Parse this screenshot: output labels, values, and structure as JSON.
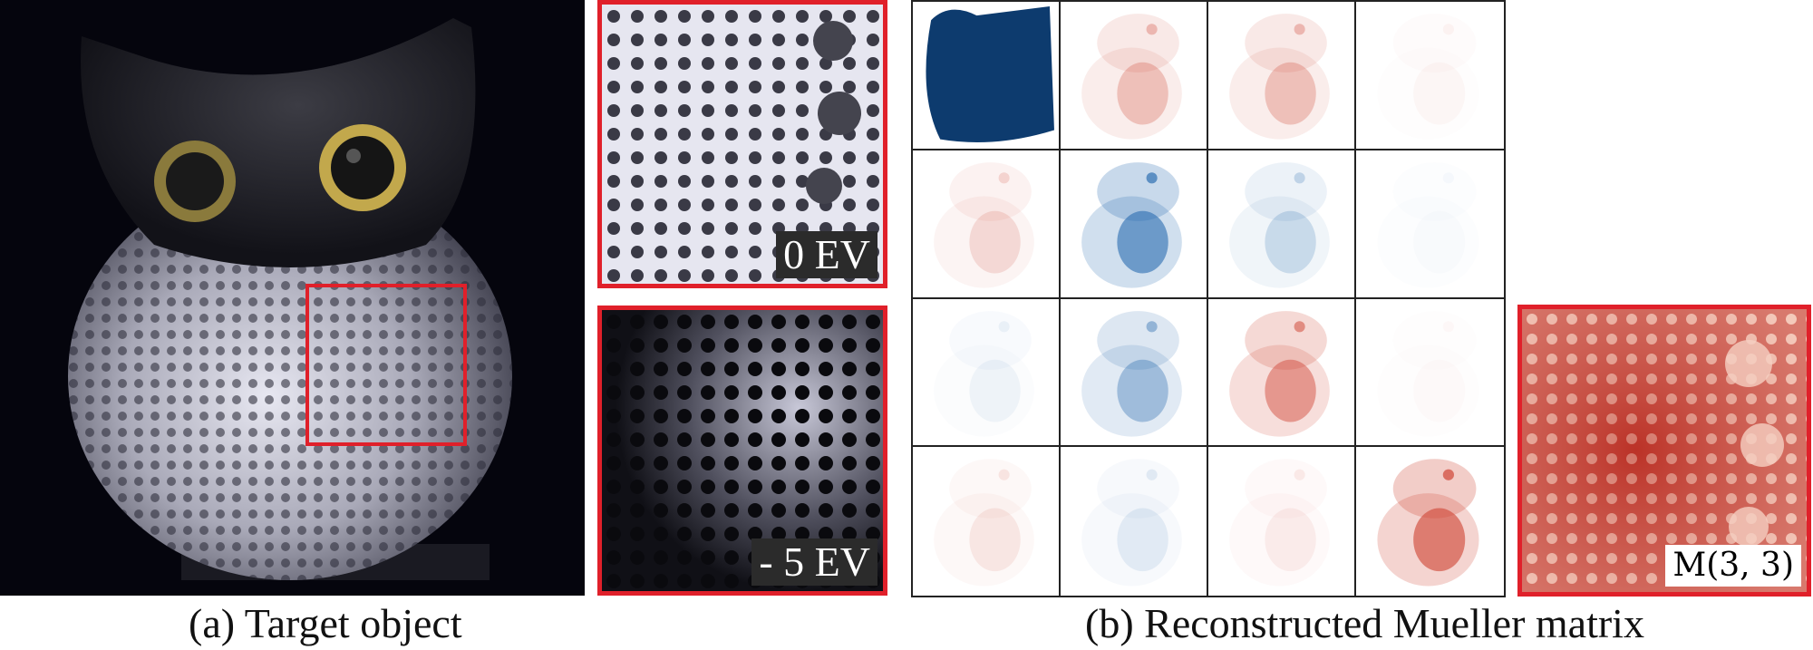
{
  "figure": {
    "left_panel": {
      "caption": "(a) Target object",
      "zoom_labels": [
        "0 EV",
        "- 5 EV"
      ]
    },
    "right_panel": {
      "caption": "(b) Reconstructed Mueller matrix",
      "zoom_label": "M(3, 3)"
    }
  },
  "colors": {
    "highlight_box": "#e0202a",
    "positive": "#d04a3a",
    "negative": "#2a6cb0",
    "m00_fill": "#0d3b6e"
  },
  "mueller_cells": [
    {
      "row": 0,
      "col": 0,
      "tone": "navy",
      "strength": 1.0
    },
    {
      "row": 0,
      "col": 1,
      "tone": "red",
      "strength": 0.35
    },
    {
      "row": 0,
      "col": 2,
      "tone": "red",
      "strength": 0.35
    },
    {
      "row": 0,
      "col": 3,
      "tone": "red",
      "strength": 0.05
    },
    {
      "row": 1,
      "col": 0,
      "tone": "red",
      "strength": 0.2
    },
    {
      "row": 1,
      "col": 1,
      "tone": "blue",
      "strength": 0.75
    },
    {
      "row": 1,
      "col": 2,
      "tone": "blue",
      "strength": 0.25
    },
    {
      "row": 1,
      "col": 3,
      "tone": "blue",
      "strength": 0.03
    },
    {
      "row": 2,
      "col": 0,
      "tone": "blue",
      "strength": 0.08
    },
    {
      "row": 2,
      "col": 1,
      "tone": "blue",
      "strength": 0.45
    },
    {
      "row": 2,
      "col": 2,
      "tone": "red",
      "strength": 0.6
    },
    {
      "row": 2,
      "col": 3,
      "tone": "red",
      "strength": 0.03
    },
    {
      "row": 3,
      "col": 0,
      "tone": "red",
      "strength": 0.12
    },
    {
      "row": 3,
      "col": 1,
      "tone": "blue",
      "strength": 0.12
    },
    {
      "row": 3,
      "col": 2,
      "tone": "red",
      "strength": 0.1
    },
    {
      "row": 3,
      "col": 3,
      "tone": "red",
      "strength": 0.8
    }
  ]
}
